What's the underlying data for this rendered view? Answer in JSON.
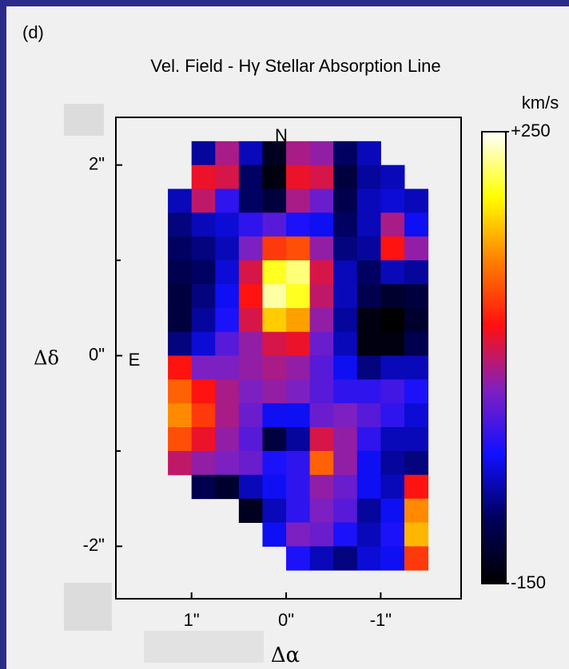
{
  "chart_data": {
    "type": "heatmap",
    "panel_label": "(d)",
    "title": "Vel. Field  - Hγ Stellar Absorption Line",
    "x_label": "Δα",
    "y_label": "Δδ",
    "annotations": [
      "N",
      "E"
    ],
    "xlim": [
      1.8,
      -1.85
    ],
    "ylim": [
      -2.55,
      2.5
    ],
    "xticks": [
      {
        "value": 1,
        "label": "1\""
      },
      {
        "value": 0,
        "label": "0\""
      },
      {
        "value": -1,
        "label": "-1\""
      }
    ],
    "yticks": [
      {
        "value": 2,
        "label": "2\""
      },
      {
        "value": 0,
        "label": "0\""
      },
      {
        "value": -2,
        "label": "-2\""
      }
    ],
    "y_minor_ticks": [
      1,
      -1
    ],
    "x": [
      1.125,
      0.875,
      0.625,
      0.375,
      0.125,
      -0.125,
      -0.375,
      -0.625,
      -0.875,
      -1.125,
      -1.375
    ],
    "y": [
      2.125,
      1.875,
      1.625,
      1.375,
      1.125,
      0.875,
      0.625,
      0.375,
      0.125,
      -0.125,
      -0.375,
      -0.625,
      -0.875,
      -1.125,
      -1.375,
      -1.625,
      -1.875,
      -2.125
    ],
    "z": [
      [
        null,
        -70,
        40,
        -60,
        -130,
        40,
        30,
        -90,
        -60,
        null,
        null
      ],
      [
        null,
        70,
        60,
        -90,
        -140,
        70,
        60,
        -110,
        -70,
        -60,
        null
      ],
      [
        -60,
        50,
        -20,
        -90,
        -110,
        40,
        10,
        -100,
        -60,
        -50,
        -60
      ],
      [
        -80,
        -60,
        -50,
        -20,
        0,
        -30,
        -40,
        -90,
        -60,
        40,
        -40
      ],
      [
        -90,
        -80,
        -60,
        20,
        100,
        110,
        30,
        -80,
        -70,
        80,
        30
      ],
      [
        -100,
        -90,
        -50,
        60,
        200,
        220,
        60,
        -60,
        -90,
        -60,
        -70
      ],
      [
        -110,
        -80,
        -40,
        80,
        230,
        200,
        50,
        -60,
        -100,
        -120,
        -110
      ],
      [
        -110,
        -70,
        -30,
        60,
        170,
        150,
        30,
        -70,
        -140,
        -150,
        -120
      ],
      [
        -80,
        -50,
        0,
        30,
        60,
        70,
        10,
        -60,
        -140,
        -140,
        -100
      ],
      [
        80,
        20,
        20,
        30,
        40,
        30,
        0,
        -40,
        -80,
        -60,
        -60
      ],
      [
        120,
        80,
        40,
        20,
        30,
        20,
        0,
        -20,
        -20,
        -10,
        -30
      ],
      [
        140,
        100,
        40,
        10,
        -40,
        -40,
        10,
        20,
        0,
        -20,
        -50
      ],
      [
        110,
        70,
        30,
        0,
        -110,
        -70,
        60,
        30,
        -20,
        -60,
        -60
      ],
      [
        50,
        30,
        20,
        10,
        -30,
        -20,
        120,
        30,
        -40,
        -70,
        -80
      ],
      [
        null,
        -100,
        -120,
        -60,
        -40,
        -20,
        30,
        10,
        -40,
        -60,
        80
      ],
      [
        null,
        null,
        null,
        -130,
        -60,
        -20,
        20,
        0,
        -70,
        -40,
        140
      ],
      [
        null,
        null,
        null,
        null,
        -40,
        20,
        10,
        -30,
        -60,
        -30,
        160
      ],
      [
        null,
        null,
        null,
        null,
        null,
        -30,
        -60,
        -80,
        -50,
        -40,
        100
      ]
    ],
    "colorbar_label": "km/s",
    "clim": [
      -150,
      250
    ],
    "cticks": [
      {
        "value": 250,
        "label": "+250"
      },
      -150
    ],
    "colormap": [
      "#000000",
      "#00005a",
      "#1010ff",
      "#8020c0",
      "#ff1010",
      "#ff8000",
      "#ffff00",
      "#ffffff"
    ]
  }
}
